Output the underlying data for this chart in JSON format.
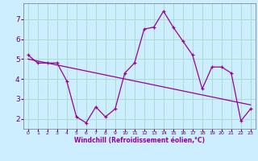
{
  "xlabel": "Windchill (Refroidissement éolien,°C)",
  "background_color": "#cceeff",
  "grid_color": "#aaddcc",
  "line_color": "#990099",
  "x": [
    0,
    1,
    2,
    3,
    4,
    5,
    6,
    7,
    8,
    9,
    10,
    11,
    12,
    13,
    14,
    15,
    16,
    17,
    18,
    19,
    20,
    21,
    22,
    23
  ],
  "y": [
    5.2,
    4.8,
    4.8,
    4.8,
    3.9,
    2.1,
    1.8,
    2.6,
    2.1,
    2.5,
    4.3,
    4.8,
    6.5,
    6.6,
    7.4,
    6.6,
    5.9,
    5.2,
    3.5,
    4.6,
    4.6,
    4.3,
    1.9,
    2.5
  ],
  "trend_x": [
    0,
    23
  ],
  "trend_y": [
    5.0,
    2.7
  ],
  "ylim": [
    1.5,
    7.8
  ],
  "xlim": [
    -0.5,
    23.5
  ],
  "yticks": [
    2,
    3,
    4,
    5,
    6,
    7
  ],
  "xticks": [
    0,
    1,
    2,
    3,
    4,
    5,
    6,
    7,
    8,
    9,
    10,
    11,
    12,
    13,
    14,
    15,
    16,
    17,
    18,
    19,
    20,
    21,
    22,
    23
  ]
}
